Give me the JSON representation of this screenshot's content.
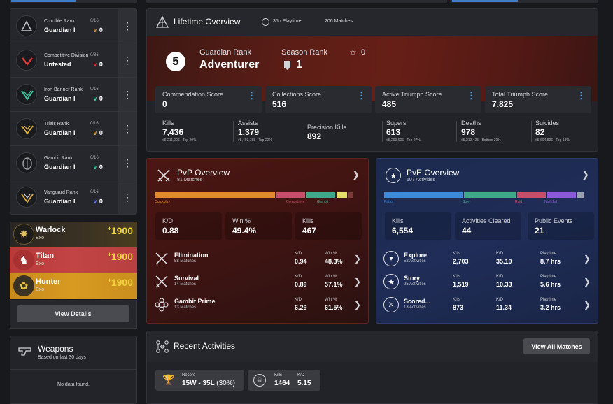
{
  "ranks": [
    {
      "name": "Crucible Rank",
      "range": "0/16",
      "tier": "Guardian I",
      "value": "0",
      "color": "#e2a93a"
    },
    {
      "name": "Competitive Division",
      "range": "0/36",
      "tier": "Untested",
      "value": "0",
      "color": "#d83a3a"
    },
    {
      "name": "Iron Banner Rank",
      "range": "0/16",
      "tier": "Guardian I",
      "value": "0",
      "color": "#3fd0a0"
    },
    {
      "name": "Trials Rank",
      "range": "0/16",
      "tier": "Guardian I",
      "value": "0",
      "color": "#e2b13a"
    },
    {
      "name": "Gambit Rank",
      "range": "0/16",
      "tier": "Guardian I",
      "value": "0",
      "color": "#3fd0a0"
    },
    {
      "name": "Vanguard Rank",
      "range": "0/16",
      "tier": "Guardian I",
      "value": "0",
      "color": "#5b7cf0"
    }
  ],
  "characters": [
    {
      "class": "Warlock",
      "race": "Exo",
      "power": "1900",
      "power_prefix": "+"
    },
    {
      "class": "Titan",
      "race": "Exo",
      "power": "1900",
      "power_prefix": "+"
    },
    {
      "class": "Hunter",
      "race": "Exo",
      "power": "1900",
      "power_prefix": "+"
    }
  ],
  "view_details_label": "View Details",
  "weapons": {
    "title": "Weapons",
    "subtitle": "Based on last 30 days",
    "empty": "No data found."
  },
  "lifetime": {
    "title": "Lifetime Overview",
    "playtime": "35h Playtime",
    "matches": "206 Matches",
    "guardian_rank_number": "5",
    "guardian_rank_label": "Guardian Rank",
    "guardian_rank_name": "Adventurer",
    "season_rank_label": "Season Rank",
    "season_rank_value": "1",
    "star_value": "0",
    "scores": [
      {
        "label": "Commendation Score",
        "value": "0"
      },
      {
        "label": "Collections Score",
        "value": "516"
      },
      {
        "label": "Active Triumph Score",
        "value": "485"
      },
      {
        "label": "Total Triumph Score",
        "value": "7,825"
      }
    ],
    "stats": [
      {
        "label": "Kills",
        "value": "7,436",
        "sub": "#5,211,206 - Top 20%"
      },
      {
        "label": "Assists",
        "value": "1,379",
        "sub": "#5,493,758 - Top 22%"
      },
      {
        "label": "Precision Kills",
        "value": "892",
        "sub": ""
      },
      {
        "label": "Supers",
        "value": "613",
        "sub": "#5,299,606 - Top 27%"
      },
      {
        "label": "Deaths",
        "value": "978",
        "sub": "#5,212,425 - Bottom 39%"
      },
      {
        "label": "Suicides",
        "value": "82",
        "sub": "#5,604,896 - Top 13%"
      }
    ]
  },
  "pvp": {
    "title": "PvP Overview",
    "subtitle": "81 Matches",
    "bar_labels": [
      "Quickplay",
      "Competitive",
      "Gambit"
    ],
    "bar_colors": [
      "#e08a2e",
      "#c64e6a",
      "#3fa88a",
      "#e4df6a",
      "#7a3a36"
    ],
    "bar_fractions": [
      0.58,
      0.14,
      0.14,
      0.05,
      0.02
    ],
    "cards": [
      {
        "label": "K/D",
        "value": "0.88"
      },
      {
        "label": "Win %",
        "value": "49.4%"
      },
      {
        "label": "Kills",
        "value": "467"
      }
    ],
    "col_labels": [
      "K/D",
      "Win %"
    ],
    "modes": [
      {
        "name": "Elimination",
        "sub": "58 Matches",
        "kd": "0.94",
        "win": "48.3%"
      },
      {
        "name": "Survival",
        "sub": "14 Matches",
        "kd": "0.89",
        "win": "57.1%"
      },
      {
        "name": "Gambit Prime",
        "sub": "13 Matches",
        "kd": "6.29",
        "win": "61.5%"
      }
    ]
  },
  "pve": {
    "title": "PvE Overview",
    "subtitle": "107 Activities",
    "bar_labels": [
      "Patrol",
      "Story",
      "Raid",
      "Nightfall"
    ],
    "bar_colors": [
      "#3c8ad8",
      "#3fa88a",
      "#c64e6a",
      "#8a5ad8",
      "#9aa0b0"
    ],
    "bar_fractions": [
      0.38,
      0.25,
      0.14,
      0.14,
      0.03
    ],
    "cards": [
      {
        "label": "Kills",
        "value": "6,554"
      },
      {
        "label": "Activities Cleared",
        "value": "44"
      },
      {
        "label": "Public Events",
        "value": "21"
      }
    ],
    "col_labels": [
      "Kills",
      "K/D",
      "Playtime"
    ],
    "modes": [
      {
        "name": "Explore",
        "sub": "52 Activities",
        "kills": "2,703",
        "kd": "35.10",
        "playtime": "8.7 hrs"
      },
      {
        "name": "Story",
        "sub": "25 Activities",
        "kills": "1,519",
        "kd": "10.33",
        "playtime": "5.6 hrs"
      },
      {
        "name": "Scored...",
        "sub": "13 Activities",
        "kills": "873",
        "kd": "11.34",
        "playtime": "3.2 hrs"
      }
    ]
  },
  "recent": {
    "title": "Recent Activities",
    "view_all": "View All Matches",
    "record_label": "Record",
    "record_value": "15W - 35L",
    "record_pct": "(30%)",
    "kills_label": "Kills",
    "kills_value": "1464",
    "kd_label": "K/D",
    "kd_value": "5.15"
  }
}
